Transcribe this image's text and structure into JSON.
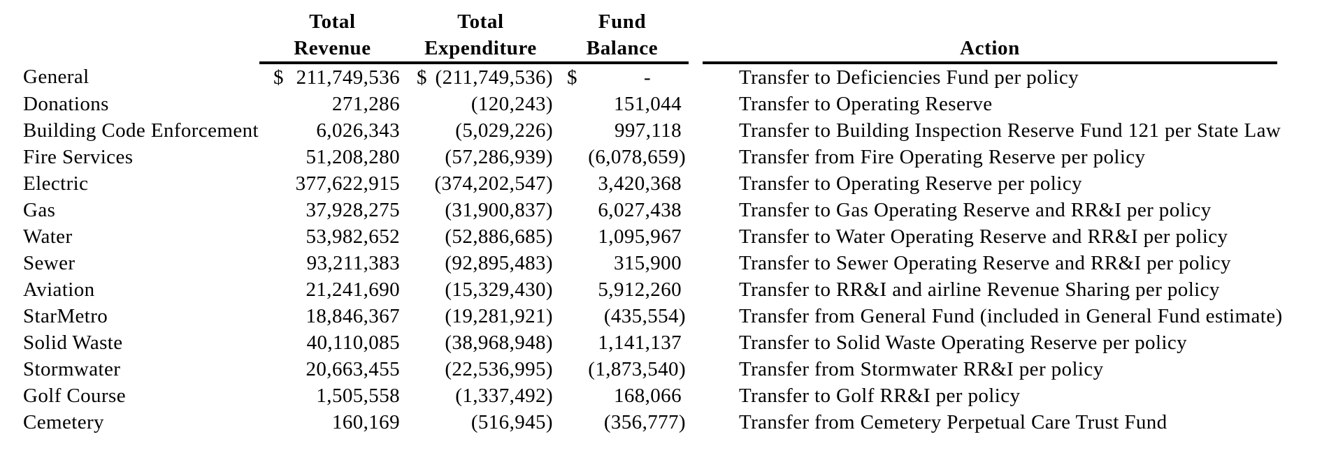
{
  "colors": {
    "text": "#000000",
    "background": "#ffffff",
    "rule": "#000000"
  },
  "table": {
    "currency_symbol": "$",
    "dash": "-",
    "headers": {
      "revenue": [
        "Total",
        "Revenue"
      ],
      "expenditure": [
        "Total",
        "Expenditure"
      ],
      "balance": [
        "Fund",
        "Balance"
      ],
      "action": "Action"
    },
    "rows": [
      {
        "fund": "General",
        "revenue": "211,749,536",
        "expenditure": "(211,749,536)",
        "balance": "-",
        "dollar": true,
        "action": "Transfer to Deficiencies Fund per policy"
      },
      {
        "fund": "Donations",
        "revenue": "271,286",
        "expenditure": "(120,243)",
        "balance": "151,044",
        "dollar": false,
        "action": "Transfer to Operating Reserve"
      },
      {
        "fund": "Building Code Enforcement",
        "revenue": "6,026,343",
        "expenditure": "(5,029,226)",
        "balance": "997,118",
        "dollar": false,
        "action": "Transfer to Building Inspection Reserve Fund 121 per State Law"
      },
      {
        "fund": "Fire Services",
        "revenue": "51,208,280",
        "expenditure": "(57,286,939)",
        "balance": "(6,078,659)",
        "dollar": false,
        "action": "Transfer from Fire Operating Reserve per policy"
      },
      {
        "fund": "Electric",
        "revenue": "377,622,915",
        "expenditure": "(374,202,547)",
        "balance": "3,420,368",
        "dollar": false,
        "action": "Transfer to Operating Reserve per policy"
      },
      {
        "fund": "Gas",
        "revenue": "37,928,275",
        "expenditure": "(31,900,837)",
        "balance": "6,027,438",
        "dollar": false,
        "action": "Transfer to Gas Operating Reserve and RR&I per policy"
      },
      {
        "fund": "Water",
        "revenue": "53,982,652",
        "expenditure": "(52,886,685)",
        "balance": "1,095,967",
        "dollar": false,
        "action": "Transfer to Water Operating Reserve and RR&I per policy"
      },
      {
        "fund": "Sewer",
        "revenue": "93,211,383",
        "expenditure": "(92,895,483)",
        "balance": "315,900",
        "dollar": false,
        "action": "Transfer to Sewer Operating Reserve and RR&I per policy"
      },
      {
        "fund": "Aviation",
        "revenue": "21,241,690",
        "expenditure": "(15,329,430)",
        "balance": "5,912,260",
        "dollar": false,
        "action": "Transfer to RR&I and airline Revenue Sharing per policy"
      },
      {
        "fund": "StarMetro",
        "revenue": "18,846,367",
        "expenditure": "(19,281,921)",
        "balance": "(435,554)",
        "dollar": false,
        "action": "Transfer from General Fund (included in General Fund estimate)"
      },
      {
        "fund": "Solid Waste",
        "revenue": "40,110,085",
        "expenditure": "(38,968,948)",
        "balance": "1,141,137",
        "dollar": false,
        "action": "Transfer to Solid Waste Operating Reserve per policy"
      },
      {
        "fund": "Stormwater",
        "revenue": "20,663,455",
        "expenditure": "(22,536,995)",
        "balance": "(1,873,540)",
        "dollar": false,
        "action": "Transfer from Stormwater RR&I per policy"
      },
      {
        "fund": "Golf Course",
        "revenue": "1,505,558",
        "expenditure": "(1,337,492)",
        "balance": "168,066",
        "dollar": false,
        "action": "Transfer to Golf RR&I per policy"
      },
      {
        "fund": "Cemetery",
        "revenue": "160,169",
        "expenditure": "(516,945)",
        "balance": "(356,777)",
        "dollar": false,
        "action": "Transfer from Cemetery Perpetual Care Trust Fund"
      }
    ]
  }
}
